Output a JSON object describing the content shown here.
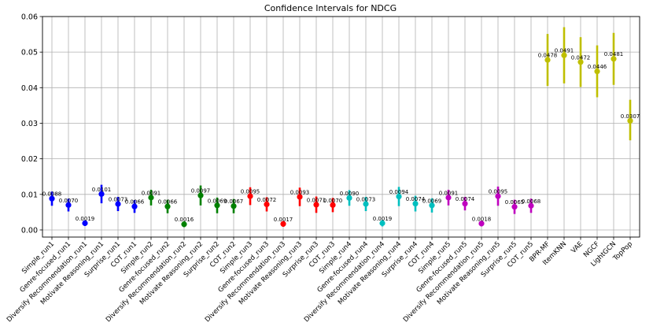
{
  "chart_data": {
    "type": "scatter",
    "title": "Confidence Intervals for NDCG",
    "xlabel": "",
    "ylabel": "",
    "ylim": [
      -0.002,
      0.06
    ],
    "yticks": [
      "0.00",
      "0.01",
      "0.02",
      "0.03",
      "0.04",
      "0.05",
      "0.06"
    ],
    "ytick_values": [
      0,
      0.01,
      0.02,
      0.03,
      0.04,
      0.05,
      0.06
    ],
    "grid": true,
    "points": [
      {
        "label": "Simple_run1",
        "value": 0.0088,
        "text": "0.0088",
        "low": 0.0068,
        "high": 0.0108,
        "color": "#0000ff"
      },
      {
        "label": "Genre-focused_run1",
        "value": 0.007,
        "text": "0.0070",
        "low": 0.0052,
        "high": 0.0088,
        "color": "#0000ff"
      },
      {
        "label": "Diversify Recommendation_run1",
        "value": 0.0019,
        "text": "0.0019",
        "low": 0.0011,
        "high": 0.0027,
        "color": "#0000ff"
      },
      {
        "label": "Motivate Reasoning_run1",
        "value": 0.0101,
        "text": "0.0101",
        "low": 0.0075,
        "high": 0.0127,
        "color": "#0000ff"
      },
      {
        "label": "Surprise_run1",
        "value": 0.0073,
        "text": "0.0073",
        "low": 0.0053,
        "high": 0.0093,
        "color": "#0000ff"
      },
      {
        "label": "COT_run1",
        "value": 0.0066,
        "text": "0.0066",
        "low": 0.0048,
        "high": 0.0084,
        "color": "#0000ff"
      },
      {
        "label": "Simple_run2",
        "value": 0.0091,
        "text": "0.0091",
        "low": 0.0069,
        "high": 0.0113,
        "color": "#008000"
      },
      {
        "label": "Genre-focused_run2",
        "value": 0.0066,
        "text": "0.0066",
        "low": 0.0047,
        "high": 0.0085,
        "color": "#008000"
      },
      {
        "label": "Diversify Recommendation_run2",
        "value": 0.0016,
        "text": "0.0016",
        "low": 0.0008,
        "high": 0.0024,
        "color": "#008000"
      },
      {
        "label": "Motivate Reasoning_run2",
        "value": 0.0097,
        "text": "0.0097",
        "low": 0.0069,
        "high": 0.0125,
        "color": "#008000"
      },
      {
        "label": "Surprise_run2",
        "value": 0.0069,
        "text": "0.0069",
        "low": 0.0047,
        "high": 0.0091,
        "color": "#008000"
      },
      {
        "label": "COT_run2",
        "value": 0.0067,
        "text": "0.0067",
        "low": 0.0047,
        "high": 0.0087,
        "color": "#008000"
      },
      {
        "label": "Simple_run3",
        "value": 0.0095,
        "text": "0.0095",
        "low": 0.007,
        "high": 0.012,
        "color": "#ff0000"
      },
      {
        "label": "Genre-focused_run3",
        "value": 0.0072,
        "text": "0.0072",
        "low": 0.0052,
        "high": 0.0092,
        "color": "#ff0000"
      },
      {
        "label": "Diversify Recommendation_run3",
        "value": 0.0017,
        "text": "0.0017",
        "low": 0.0009,
        "high": 0.0025,
        "color": "#ff0000"
      },
      {
        "label": "Motivate Reasoning_run3",
        "value": 0.0093,
        "text": "0.0093",
        "low": 0.0067,
        "high": 0.0119,
        "color": "#ff0000"
      },
      {
        "label": "Surprise_run3",
        "value": 0.0071,
        "text": "0.0071",
        "low": 0.0048,
        "high": 0.0094,
        "color": "#ff0000"
      },
      {
        "label": "COT_run3",
        "value": 0.007,
        "text": "0.0070",
        "low": 0.005,
        "high": 0.009,
        "color": "#ff0000"
      },
      {
        "label": "Simple_run4",
        "value": 0.009,
        "text": "0.0090",
        "low": 0.0068,
        "high": 0.0112,
        "color": "#00bfbf"
      },
      {
        "label": "Genre-focused_run4",
        "value": 0.0073,
        "text": "0.0073",
        "low": 0.0053,
        "high": 0.0093,
        "color": "#00bfbf"
      },
      {
        "label": "Diversify Recommendation_run4",
        "value": 0.0019,
        "text": "0.0019",
        "low": 0.001,
        "high": 0.0028,
        "color": "#00bfbf"
      },
      {
        "label": "Motivate Reasoning_run4",
        "value": 0.0094,
        "text": "0.0094",
        "low": 0.0067,
        "high": 0.0121,
        "color": "#00bfbf"
      },
      {
        "label": "Surprise_run4",
        "value": 0.0074,
        "text": "0.0074",
        "low": 0.0052,
        "high": 0.0096,
        "color": "#00bfbf"
      },
      {
        "label": "COT_run4",
        "value": 0.0069,
        "text": "0.0069",
        "low": 0.0049,
        "high": 0.0089,
        "color": "#00bfbf"
      },
      {
        "label": "Simple_run5",
        "value": 0.0091,
        "text": "0.0091",
        "low": 0.0069,
        "high": 0.0113,
        "color": "#bf00bf"
      },
      {
        "label": "Genre-focused_run5",
        "value": 0.0074,
        "text": "0.0074",
        "low": 0.0055,
        "high": 0.0093,
        "color": "#bf00bf"
      },
      {
        "label": "Diversify Recommendation_run5",
        "value": 0.0018,
        "text": "0.0018",
        "low": 0.001,
        "high": 0.0026,
        "color": "#bf00bf"
      },
      {
        "label": "Motivate Reasoning_run5",
        "value": 0.0095,
        "text": "0.0095",
        "low": 0.0068,
        "high": 0.0122,
        "color": "#bf00bf"
      },
      {
        "label": "Surprise_run5",
        "value": 0.0065,
        "text": "0.0065",
        "low": 0.0045,
        "high": 0.0085,
        "color": "#bf00bf"
      },
      {
        "label": "COT_run5",
        "value": 0.0068,
        "text": "0.0068",
        "low": 0.0048,
        "high": 0.0088,
        "color": "#bf00bf"
      },
      {
        "label": "BPR-MF",
        "value": 0.0478,
        "text": "0.0478",
        "low": 0.0405,
        "high": 0.0551,
        "color": "#bfbf00"
      },
      {
        "label": "ItemKNN",
        "value": 0.0491,
        "text": "0.0491",
        "low": 0.0412,
        "high": 0.057,
        "color": "#bfbf00"
      },
      {
        "label": "VAE",
        "value": 0.0472,
        "text": "0.0472",
        "low": 0.0402,
        "high": 0.0542,
        "color": "#bfbf00"
      },
      {
        "label": "NGCF",
        "value": 0.0446,
        "text": "0.0446",
        "low": 0.0373,
        "high": 0.0519,
        "color": "#bfbf00"
      },
      {
        "label": "LightGCN",
        "value": 0.0481,
        "text": "0.0481",
        "low": 0.0408,
        "high": 0.0554,
        "color": "#bfbf00"
      },
      {
        "label": "TopPop",
        "value": 0.0307,
        "text": "0.0307",
        "low": 0.0252,
        "high": 0.0366,
        "color": "#bfbf00"
      }
    ]
  }
}
